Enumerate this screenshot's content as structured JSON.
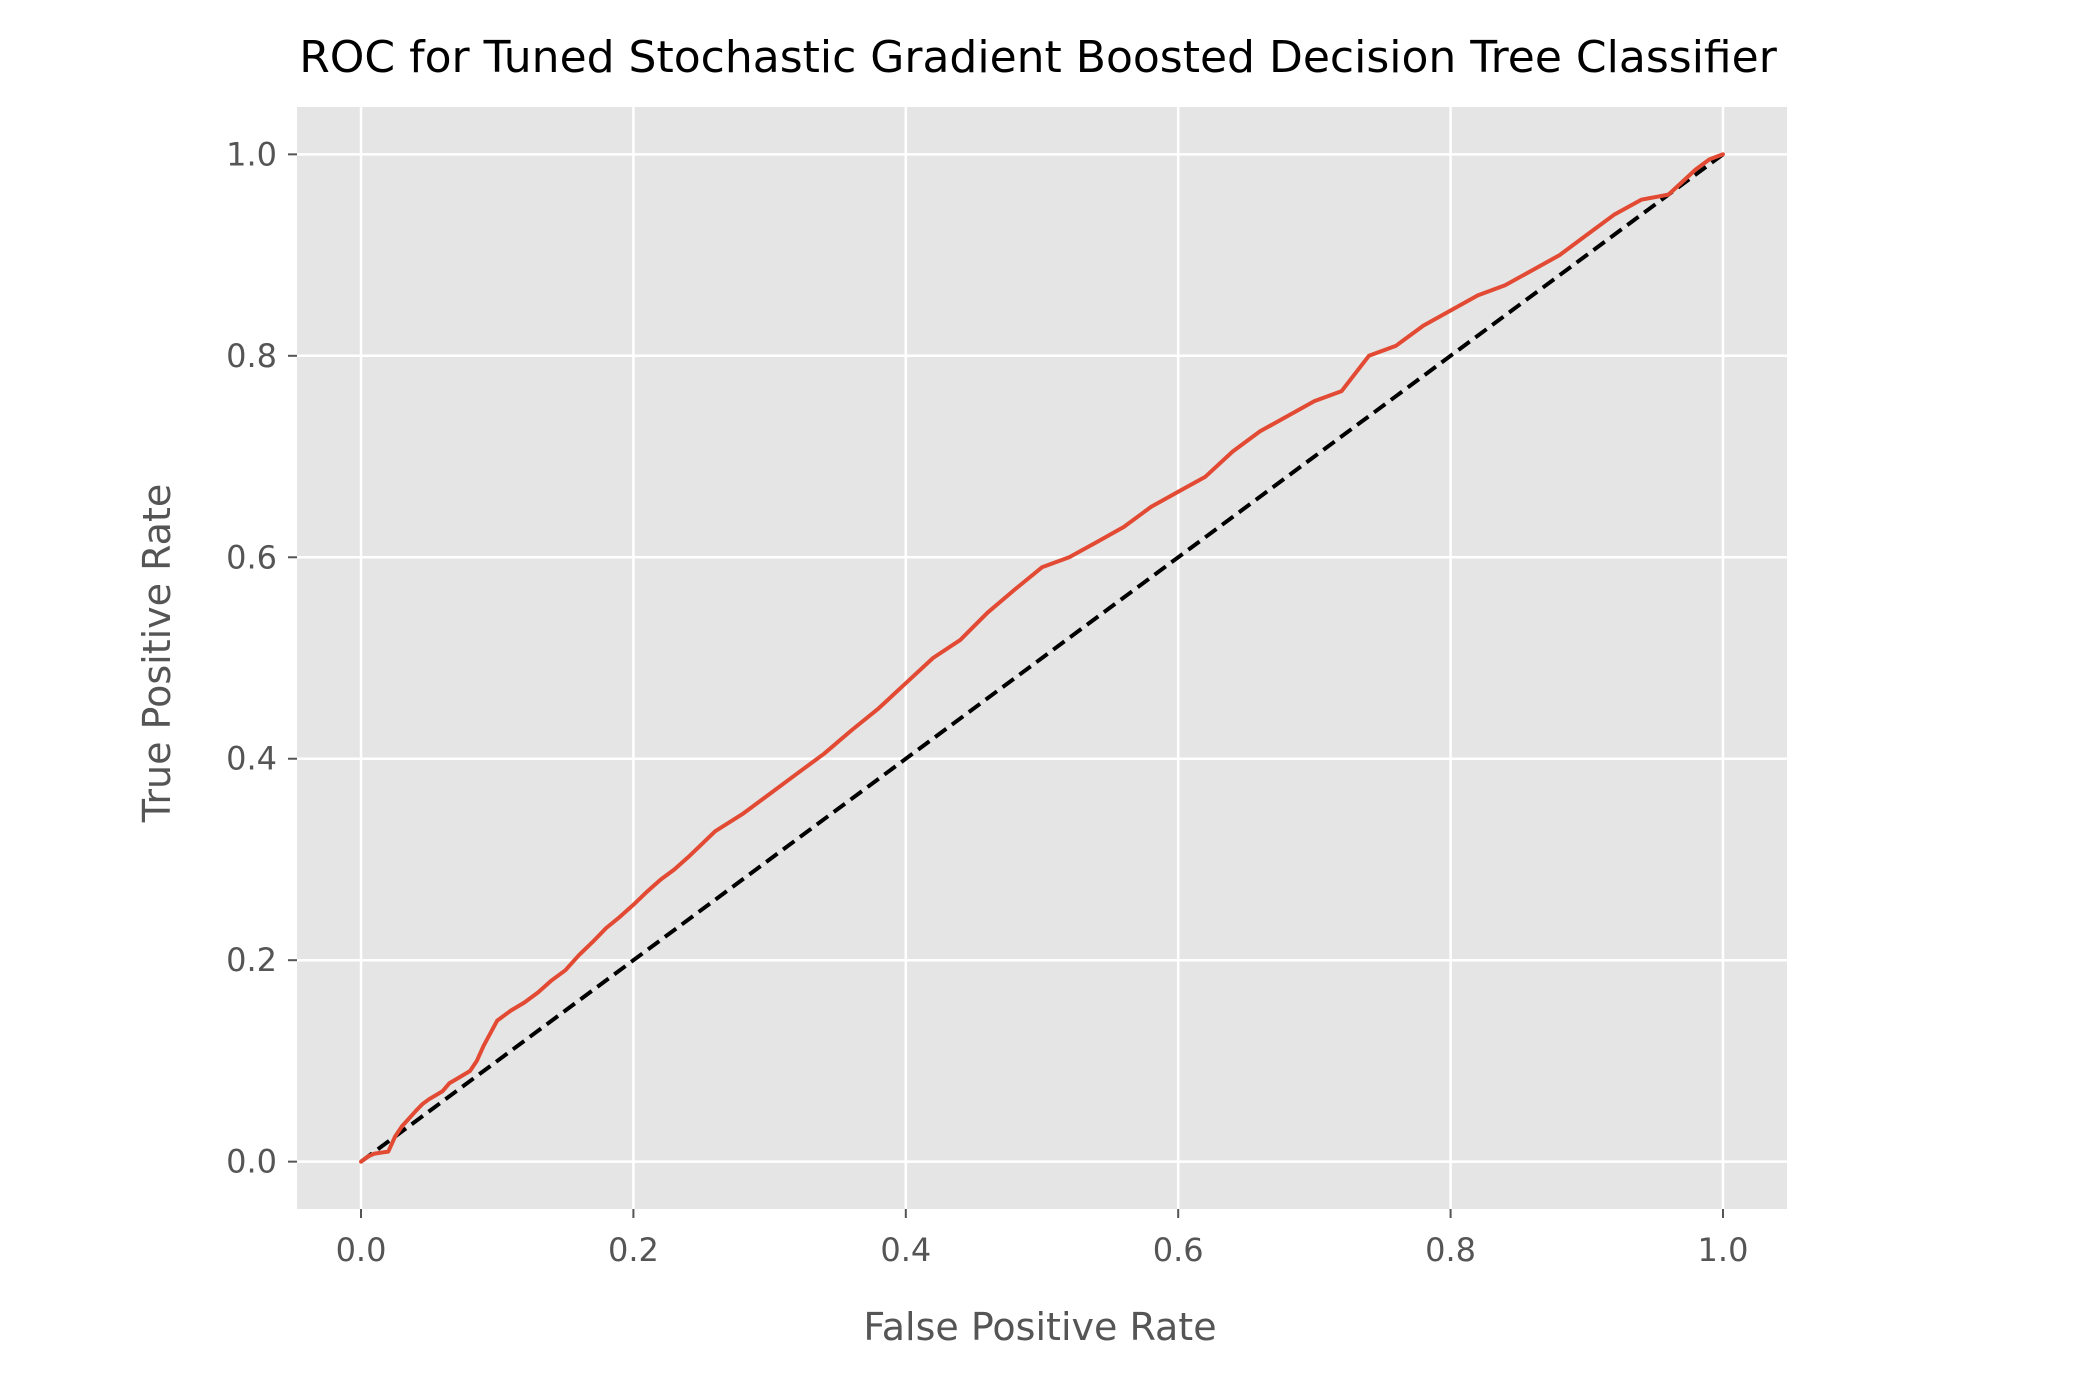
{
  "chart_data": {
    "type": "line",
    "title": "ROC for Tuned Stochastic Gradient Boosted Decision Tree Classifier",
    "xlabel": "False Positive Rate",
    "ylabel": "True Positive Rate",
    "xlim": [
      -0.047,
      1.047
    ],
    "ylim": [
      -0.047,
      1.047
    ],
    "xticks": [
      0.0,
      0.2,
      0.4,
      0.6,
      0.8,
      1.0
    ],
    "xtick_labels": [
      "0.0",
      "0.2",
      "0.4",
      "0.6",
      "0.8",
      "1.0"
    ],
    "yticks": [
      0.0,
      0.2,
      0.4,
      0.6,
      0.8,
      1.0
    ],
    "ytick_labels": [
      "0.0",
      "0.2",
      "0.4",
      "0.6",
      "0.8",
      "1.0"
    ],
    "grid": true,
    "legend": "none",
    "style": {
      "background": "#e5e5e5",
      "grid_color": "#ffffff",
      "tick_label_color": "#555555",
      "axis_label_color": "#555555",
      "title_color": "#000000"
    },
    "series": [
      {
        "kind": "roc-curve",
        "color": "#e24a33",
        "line_style": "solid",
        "x": [
          0.0,
          0.005,
          0.01,
          0.02,
          0.025,
          0.03,
          0.04,
          0.045,
          0.05,
          0.06,
          0.065,
          0.07,
          0.08,
          0.085,
          0.09,
          0.1,
          0.11,
          0.12,
          0.13,
          0.14,
          0.15,
          0.16,
          0.17,
          0.18,
          0.19,
          0.2,
          0.21,
          0.22,
          0.23,
          0.24,
          0.25,
          0.26,
          0.28,
          0.3,
          0.32,
          0.34,
          0.36,
          0.38,
          0.4,
          0.42,
          0.44,
          0.46,
          0.48,
          0.5,
          0.52,
          0.54,
          0.56,
          0.58,
          0.6,
          0.62,
          0.64,
          0.66,
          0.68,
          0.7,
          0.72,
          0.74,
          0.76,
          0.78,
          0.8,
          0.82,
          0.84,
          0.86,
          0.88,
          0.9,
          0.92,
          0.94,
          0.96,
          0.98,
          0.99,
          1.0
        ],
        "y": [
          0.0,
          0.005,
          0.008,
          0.01,
          0.025,
          0.035,
          0.05,
          0.057,
          0.062,
          0.07,
          0.078,
          0.082,
          0.09,
          0.1,
          0.115,
          0.14,
          0.15,
          0.158,
          0.168,
          0.18,
          0.19,
          0.205,
          0.218,
          0.232,
          0.243,
          0.255,
          0.268,
          0.28,
          0.29,
          0.302,
          0.315,
          0.328,
          0.345,
          0.365,
          0.385,
          0.405,
          0.428,
          0.45,
          0.475,
          0.5,
          0.518,
          0.545,
          0.568,
          0.59,
          0.6,
          0.615,
          0.63,
          0.65,
          0.665,
          0.68,
          0.705,
          0.725,
          0.74,
          0.755,
          0.765,
          0.8,
          0.81,
          0.83,
          0.845,
          0.86,
          0.87,
          0.885,
          0.9,
          0.92,
          0.94,
          0.955,
          0.96,
          0.985,
          0.995,
          1.0
        ]
      },
      {
        "kind": "chance-line",
        "color": "#000000",
        "line_style": "dashed",
        "x": [
          0.0,
          1.0
        ],
        "y": [
          0.0,
          1.0
        ]
      }
    ]
  }
}
